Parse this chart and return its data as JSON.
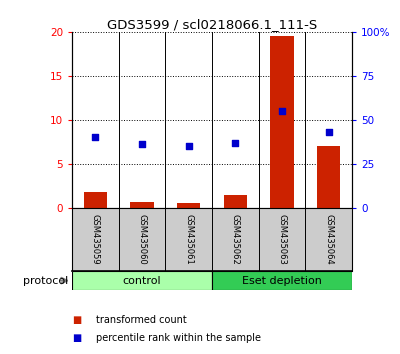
{
  "title": "GDS3599 / scl0218066.1_111-S",
  "samples": [
    "GSM435059",
    "GSM435060",
    "GSM435061",
    "GSM435062",
    "GSM435063",
    "GSM435064"
  ],
  "red_bars": [
    1.8,
    0.6,
    0.5,
    1.4,
    19.5,
    7.0
  ],
  "blue_dots": [
    40,
    36,
    35,
    37,
    55,
    43
  ],
  "left_ylim": [
    0,
    20
  ],
  "right_ylim": [
    0,
    100
  ],
  "left_yticks": [
    0,
    5,
    10,
    15,
    20
  ],
  "right_yticks": [
    0,
    25,
    50,
    75,
    100
  ],
  "right_yticklabels": [
    "0",
    "25",
    "50",
    "75",
    "100%"
  ],
  "groups": [
    {
      "label": "control",
      "indices": [
        0,
        1,
        2
      ],
      "color": "#AAFFAA"
    },
    {
      "label": "Eset depletion",
      "indices": [
        3,
        4,
        5
      ],
      "color": "#33CC55"
    }
  ],
  "bar_color": "#CC2200",
  "dot_color": "#0000CC",
  "bg_color": "#FFFFFF",
  "sample_bg": "#CCCCCC",
  "legend_red": "transformed count",
  "legend_blue": "percentile rank within the sample",
  "protocol_label": "protocol"
}
